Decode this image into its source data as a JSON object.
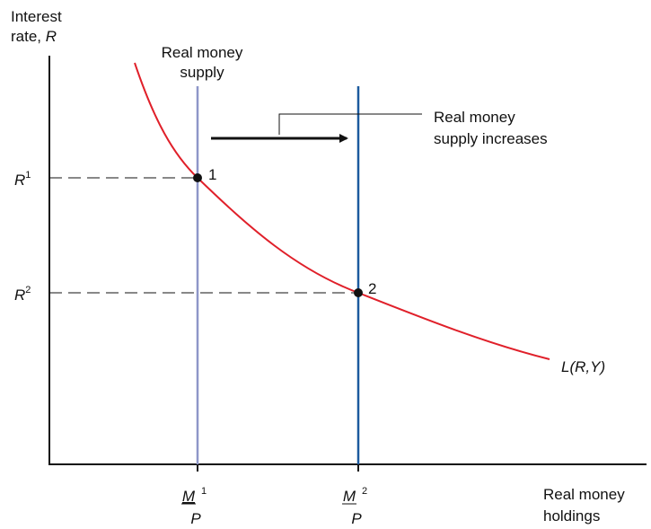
{
  "axes": {
    "y_label": {
      "line1": "Interest",
      "line2": "rate,",
      "symbol": "R"
    },
    "x_label": {
      "line1": "Real money",
      "line2": "holdings"
    }
  },
  "supply_label": [
    "Real money",
    "supply"
  ],
  "shift_label": [
    "Real money",
    "supply increases"
  ],
  "demand_label": "L(R,Y)",
  "equilibria": [
    {
      "label": "1",
      "rate": {
        "symbol": "R",
        "sup": "1"
      },
      "supply": {
        "numerator": "M",
        "sup": "1",
        "denominator": "P"
      }
    },
    {
      "label": "2",
      "rate": {
        "symbol": "R",
        "sup": "2"
      },
      "supply": {
        "numerator": "M",
        "sup": "2",
        "denominator": "P"
      }
    }
  ]
}
